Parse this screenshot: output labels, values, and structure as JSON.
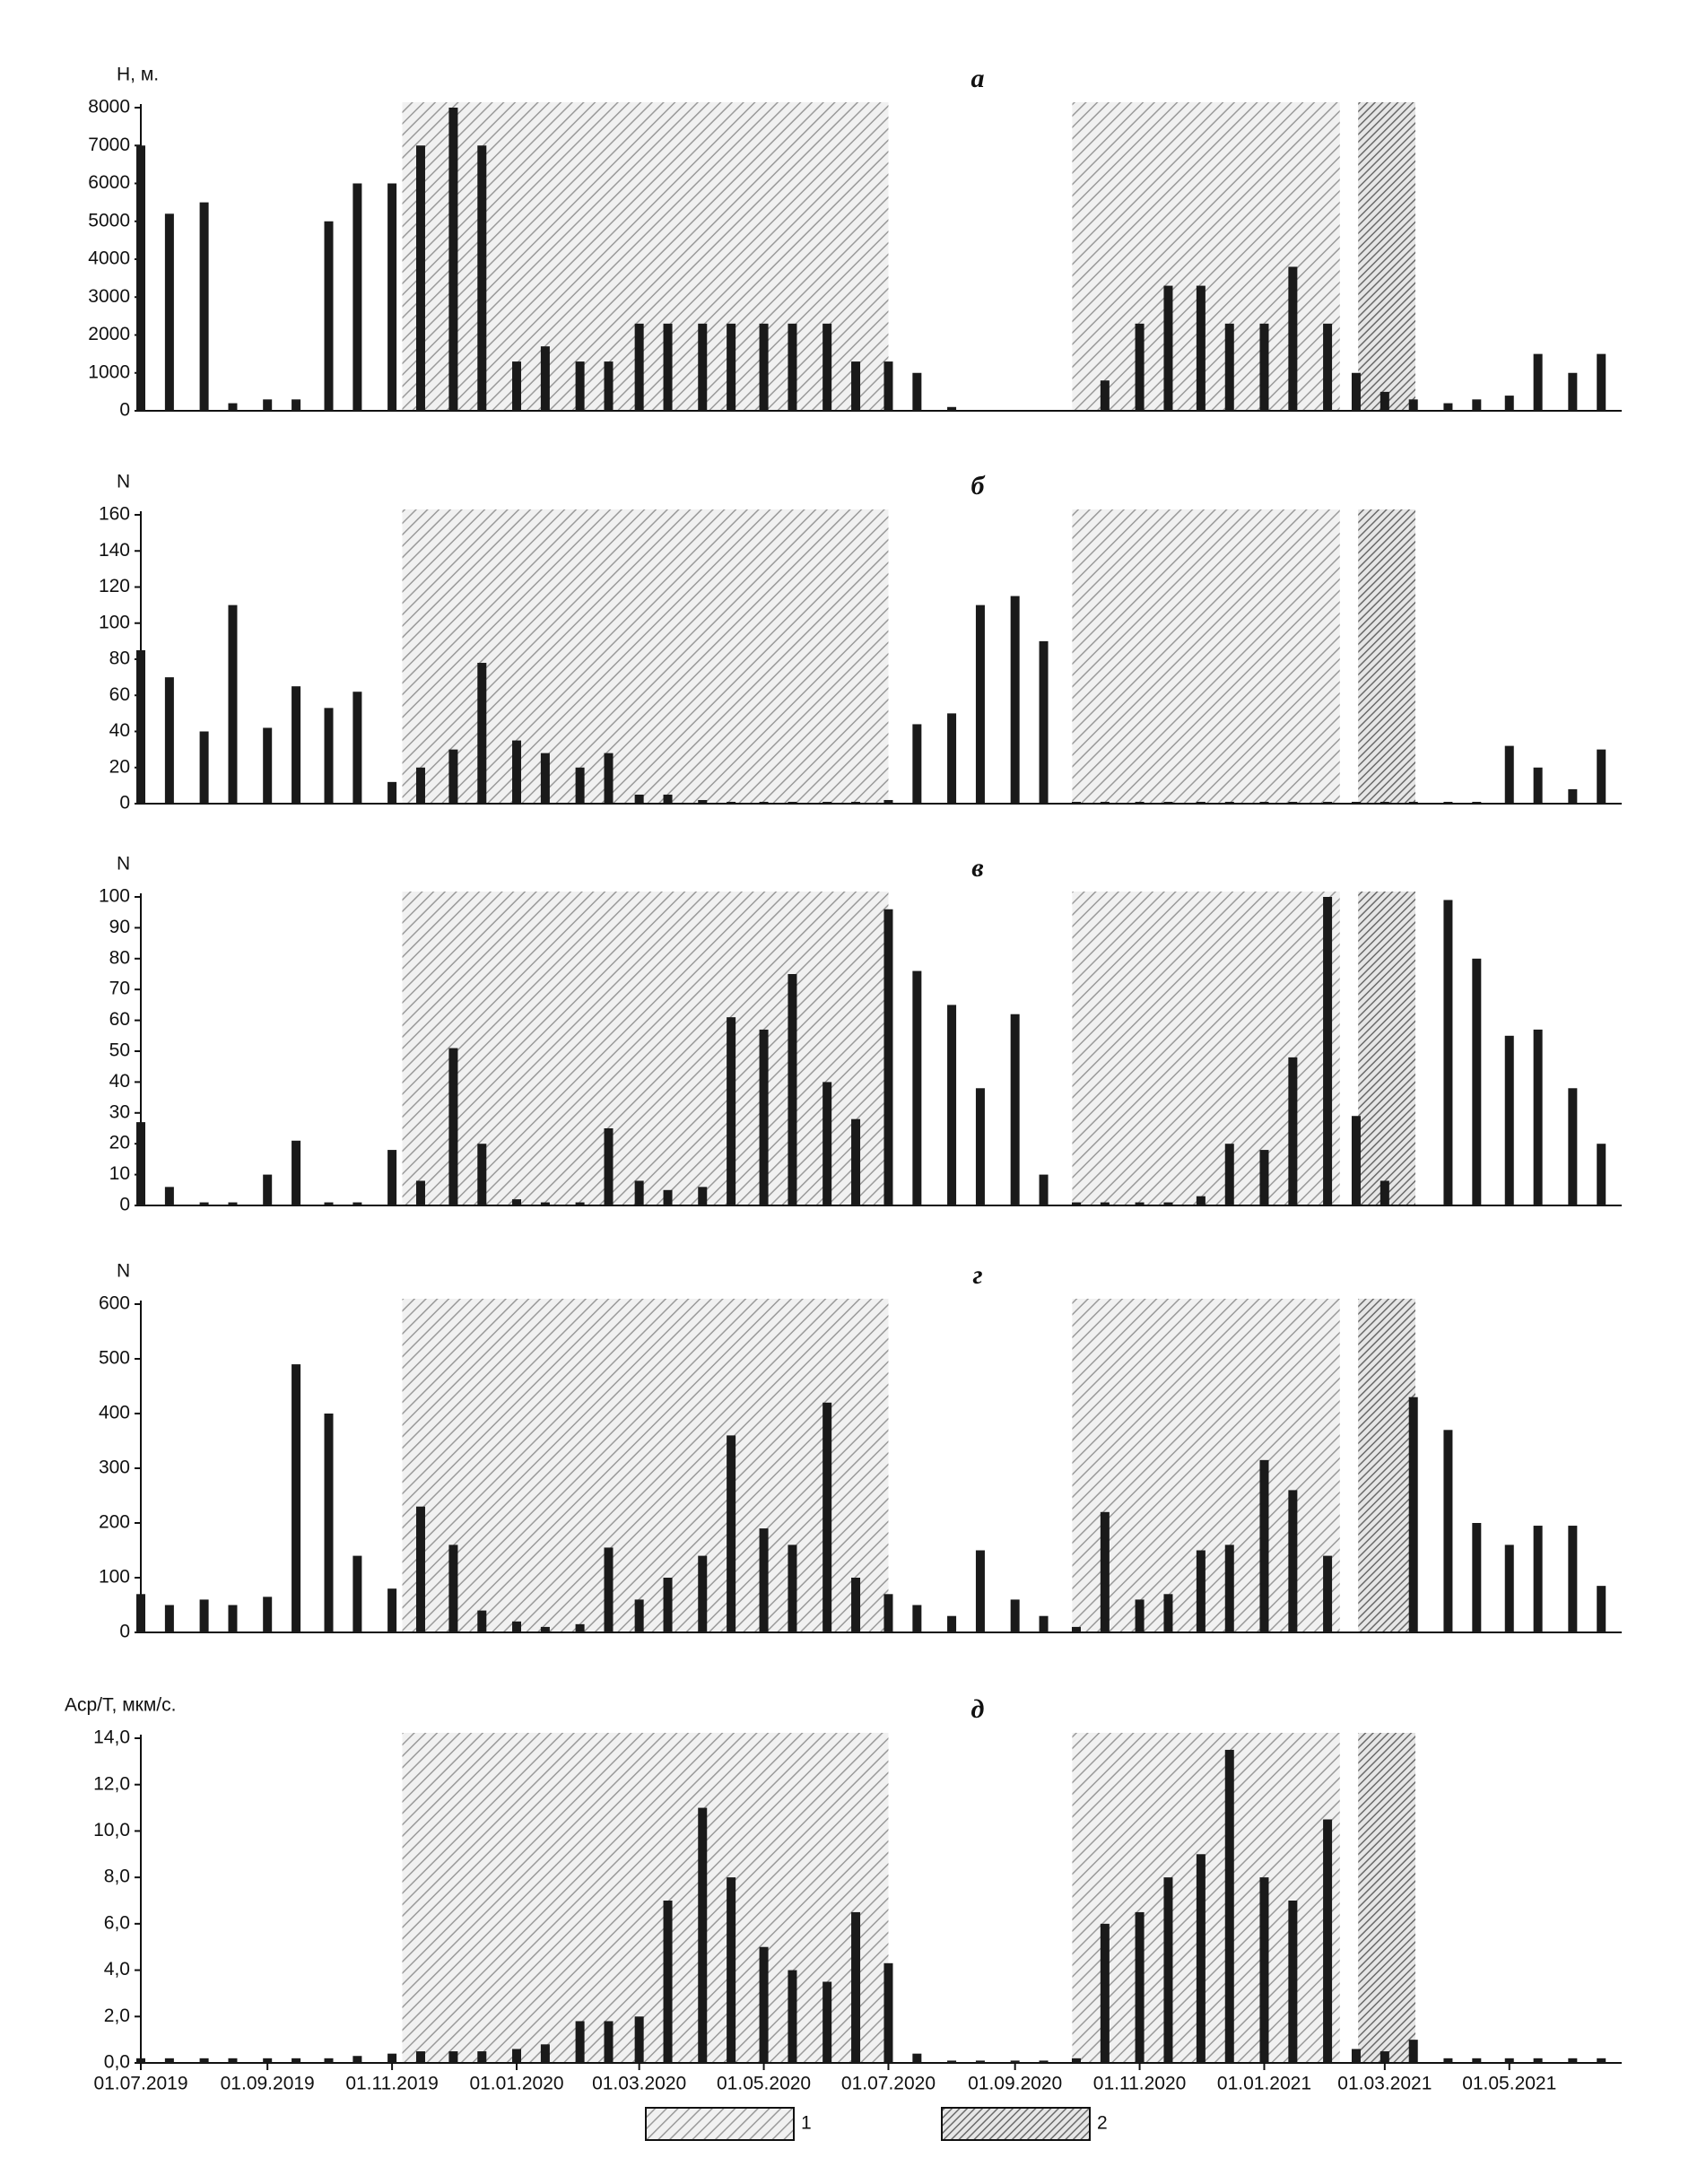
{
  "chart_data": [
    {
      "type": "bar",
      "title": "а",
      "ylabel": "H, м.",
      "color": "#1a1a1a",
      "x": [
        "01.07.2019",
        "15.07.2019",
        "01.08.2019",
        "15.08.2019",
        "01.09.2019",
        "15.09.2019",
        "01.10.2019",
        "15.10.2019",
        "01.11.2019",
        "15.11.2019",
        "01.12.2019",
        "15.12.2019",
        "01.01.2020",
        "15.01.2020",
        "01.02.2020",
        "15.02.2020",
        "01.03.2020",
        "15.03.2020",
        "01.04.2020",
        "15.04.2020",
        "01.05.2020",
        "15.05.2020",
        "01.06.2020",
        "15.06.2020",
        "01.07.2020",
        "15.07.2020",
        "01.08.2020",
        "15.08.2020",
        "01.09.2020",
        "15.09.2020",
        "01.10.2020",
        "15.10.2020",
        "01.11.2020",
        "15.11.2020",
        "01.12.2020",
        "15.12.2020",
        "01.01.2021",
        "15.01.2021",
        "01.02.2021",
        "15.02.2021",
        "01.03.2021",
        "15.03.2021",
        "01.04.2021",
        "15.04.2021",
        "01.05.2021",
        "15.05.2021",
        "01.06.2021",
        "15.06.2021"
      ],
      "values": [
        7000,
        5200,
        5500,
        200,
        300,
        300,
        5000,
        6000,
        6000,
        7000,
        8000,
        7000,
        1300,
        1700,
        1300,
        1300,
        2300,
        2300,
        2300,
        2300,
        2300,
        2300,
        2300,
        1300,
        1300,
        1000,
        100,
        0,
        0,
        0,
        0,
        800,
        2300,
        3300,
        3300,
        2300,
        2300,
        3800,
        2300,
        1000,
        500,
        300,
        200,
        300,
        400,
        1500,
        1000,
        1500
      ],
      "xlim": [
        "01.07.2019",
        "25.06.2021"
      ],
      "ylim": [
        0,
        8000
      ],
      "yticks": [
        0,
        1000,
        2000,
        3000,
        4000,
        5000,
        6000,
        7000,
        8000
      ]
    },
    {
      "type": "bar",
      "title": "б",
      "ylabel": "N",
      "color": "#1a1a1a",
      "x": [
        "01.07.2019",
        "15.07.2019",
        "01.08.2019",
        "15.08.2019",
        "01.09.2019",
        "15.09.2019",
        "01.10.2019",
        "15.10.2019",
        "01.11.2019",
        "15.11.2019",
        "01.12.2019",
        "15.12.2019",
        "01.01.2020",
        "15.01.2020",
        "01.02.2020",
        "15.02.2020",
        "01.03.2020",
        "15.03.2020",
        "01.04.2020",
        "15.04.2020",
        "01.05.2020",
        "15.05.2020",
        "01.06.2020",
        "15.06.2020",
        "01.07.2020",
        "15.07.2020",
        "01.08.2020",
        "15.08.2020",
        "01.09.2020",
        "15.09.2020",
        "01.10.2020",
        "15.10.2020",
        "01.11.2020",
        "15.11.2020",
        "01.12.2020",
        "15.12.2020",
        "01.01.2021",
        "15.01.2021",
        "01.02.2021",
        "15.02.2021",
        "01.03.2021",
        "15.03.2021",
        "01.04.2021",
        "15.04.2021",
        "01.05.2021",
        "15.05.2021",
        "01.06.2021",
        "15.06.2021"
      ],
      "values": [
        85,
        70,
        40,
        110,
        42,
        65,
        53,
        62,
        12,
        20,
        30,
        78,
        35,
        28,
        20,
        28,
        5,
        5,
        2,
        1,
        1,
        1,
        1,
        1,
        2,
        44,
        50,
        110,
        115,
        90,
        1,
        1,
        1,
        1,
        1,
        1,
        1,
        1,
        1,
        1,
        1,
        1,
        1,
        1,
        32,
        20,
        8,
        30
      ],
      "xlim": [
        "01.07.2019",
        "25.06.2021"
      ],
      "ylim": [
        0,
        160
      ],
      "yticks": [
        0,
        20,
        40,
        60,
        80,
        100,
        120,
        140,
        160
      ]
    },
    {
      "type": "bar",
      "title": "в",
      "ylabel": "N",
      "color": "#1a1a1a",
      "x": [
        "01.07.2019",
        "15.07.2019",
        "01.08.2019",
        "15.08.2019",
        "01.09.2019",
        "15.09.2019",
        "01.10.2019",
        "15.10.2019",
        "01.11.2019",
        "15.11.2019",
        "01.12.2019",
        "15.12.2019",
        "01.01.2020",
        "15.01.2020",
        "01.02.2020",
        "15.02.2020",
        "01.03.2020",
        "15.03.2020",
        "01.04.2020",
        "15.04.2020",
        "01.05.2020",
        "15.05.2020",
        "01.06.2020",
        "15.06.2020",
        "01.07.2020",
        "15.07.2020",
        "01.08.2020",
        "15.08.2020",
        "01.09.2020",
        "15.09.2020",
        "01.10.2020",
        "15.10.2020",
        "01.11.2020",
        "15.11.2020",
        "01.12.2020",
        "15.12.2020",
        "01.01.2021",
        "15.01.2021",
        "01.02.2021",
        "15.02.2021",
        "01.03.2021",
        "15.03.2021",
        "01.04.2021",
        "15.04.2021",
        "01.05.2021",
        "15.05.2021",
        "01.06.2021",
        "15.06.2021"
      ],
      "values": [
        27,
        6,
        1,
        1,
        10,
        21,
        1,
        1,
        18,
        8,
        51,
        20,
        2,
        1,
        1,
        25,
        8,
        5,
        6,
        61,
        57,
        75,
        40,
        28,
        96,
        76,
        65,
        38,
        62,
        10,
        1,
        1,
        1,
        1,
        3,
        20,
        18,
        48,
        100,
        29,
        8,
        0,
        99,
        80,
        55,
        57,
        38,
        20
      ],
      "xlim": [
        "01.07.2019",
        "25.06.2021"
      ],
      "ylim": [
        0,
        100
      ],
      "yticks": [
        0,
        10,
        20,
        30,
        40,
        50,
        60,
        70,
        80,
        90,
        100
      ]
    },
    {
      "type": "bar",
      "title": "г",
      "ylabel": "N",
      "color": "#1a1a1a",
      "x": [
        "01.07.2019",
        "15.07.2019",
        "01.08.2019",
        "15.08.2019",
        "01.09.2019",
        "15.09.2019",
        "01.10.2019",
        "15.10.2019",
        "01.11.2019",
        "15.11.2019",
        "01.12.2019",
        "15.12.2019",
        "01.01.2020",
        "15.01.2020",
        "01.02.2020",
        "15.02.2020",
        "01.03.2020",
        "15.03.2020",
        "01.04.2020",
        "15.04.2020",
        "01.05.2020",
        "15.05.2020",
        "01.06.2020",
        "15.06.2020",
        "01.07.2020",
        "15.07.2020",
        "01.08.2020",
        "15.08.2020",
        "01.09.2020",
        "15.09.2020",
        "01.10.2020",
        "15.10.2020",
        "01.11.2020",
        "15.11.2020",
        "01.12.2020",
        "15.12.2020",
        "01.01.2021",
        "15.01.2021",
        "01.02.2021",
        "15.02.2021",
        "01.03.2021",
        "15.03.2021",
        "01.04.2021",
        "15.04.2021",
        "01.05.2021",
        "15.05.2021",
        "01.06.2021",
        "15.06.2021"
      ],
      "values": [
        70,
        50,
        60,
        50,
        65,
        490,
        400,
        140,
        80,
        230,
        160,
        40,
        20,
        10,
        15,
        155,
        60,
        100,
        140,
        360,
        190,
        160,
        420,
        100,
        70,
        50,
        30,
        150,
        60,
        30,
        10,
        220,
        60,
        70,
        150,
        160,
        315,
        260,
        140,
        0,
        0,
        430,
        370,
        200,
        160,
        195,
        195,
        85
      ],
      "xlim": [
        "01.07.2019",
        "25.06.2021"
      ],
      "ylim": [
        0,
        600
      ],
      "yticks": [
        0,
        100,
        200,
        300,
        400,
        500,
        600
      ]
    },
    {
      "type": "bar",
      "title": "д",
      "ylabel": "Аср/Т, мкм/с.",
      "color": "#1a1a1a",
      "x": [
        "01.07.2019",
        "15.07.2019",
        "01.08.2019",
        "15.08.2019",
        "01.09.2019",
        "15.09.2019",
        "01.10.2019",
        "15.10.2019",
        "01.11.2019",
        "15.11.2019",
        "01.12.2019",
        "15.12.2019",
        "01.01.2020",
        "15.01.2020",
        "01.02.2020",
        "15.02.2020",
        "01.03.2020",
        "15.03.2020",
        "01.04.2020",
        "15.04.2020",
        "01.05.2020",
        "15.05.2020",
        "01.06.2020",
        "15.06.2020",
        "01.07.2020",
        "15.07.2020",
        "01.08.2020",
        "15.08.2020",
        "01.09.2020",
        "15.09.2020",
        "01.10.2020",
        "15.10.2020",
        "01.11.2020",
        "15.11.2020",
        "01.12.2020",
        "15.12.2020",
        "01.01.2021",
        "15.01.2021",
        "01.02.2021",
        "15.02.2021",
        "01.03.2021",
        "15.03.2021",
        "01.04.2021",
        "15.04.2021",
        "01.05.2021",
        "15.05.2021",
        "01.06.2021",
        "15.06.2021"
      ],
      "values": [
        0.2,
        0.2,
        0.2,
        0.2,
        0.2,
        0.2,
        0.2,
        0.3,
        0.4,
        0.5,
        0.5,
        0.5,
        0.6,
        0.8,
        1.8,
        1.8,
        2.0,
        7.0,
        11.0,
        8.0,
        5.0,
        4.0,
        3.5,
        6.5,
        4.3,
        0.4,
        0.1,
        0.1,
        0.1,
        0.1,
        0.2,
        6.0,
        6.5,
        8.0,
        9.0,
        13.5,
        8.0,
        7.0,
        10.5,
        0.6,
        0.5,
        1.0,
        0.2,
        0.2,
        0.2,
        0.2,
        0.2,
        0.2
      ],
      "xlim": [
        "01.07.2019",
        "25.06.2021"
      ],
      "ylim": [
        0,
        14
      ],
      "yticks": [
        {
          "value": 0,
          "label": "0,0"
        },
        {
          "value": 2,
          "label": "2,0"
        },
        {
          "value": 4,
          "label": "4,0"
        },
        {
          "value": 6,
          "label": "6,0"
        },
        {
          "value": 8,
          "label": "8,0"
        },
        {
          "value": 10,
          "label": "10,0"
        },
        {
          "value": 12,
          "label": "12,0"
        },
        {
          "value": 14,
          "label": "14,0"
        }
      ],
      "xticks": [
        "01.07.2019",
        "01.09.2019",
        "01.11.2019",
        "01.01.2020",
        "01.03.2020",
        "01.05.2020",
        "01.07.2020",
        "01.09.2020",
        "01.11.2020",
        "01.01.2021",
        "01.03.2021",
        "01.05.2021"
      ]
    }
  ],
  "periods": [
    {
      "start": "06.11.2019",
      "end": "01.07.2020",
      "hatch": "sparse",
      "legend": "1"
    },
    {
      "start": "29.09.2020",
      "end": "07.02.2021",
      "hatch": "sparse",
      "legend": "1"
    },
    {
      "start": "16.02.2021",
      "end": "16.03.2021",
      "hatch": "dense",
      "legend": "2"
    }
  ]
}
